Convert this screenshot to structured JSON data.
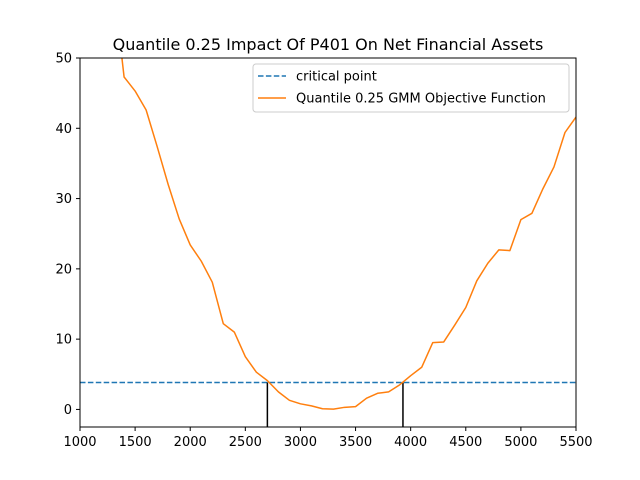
{
  "chart_data": {
    "type": "line",
    "title": "Quantile 0.25 Impact Of P401 On Net Financial Assets",
    "xlabel": "",
    "ylabel": "",
    "xlim": [
      1000,
      5500
    ],
    "ylim": [
      -2.5,
      50
    ],
    "grid": false,
    "legend_position": "top-right",
    "x_ticks": [
      1000,
      1500,
      2000,
      2500,
      3000,
      3500,
      4000,
      4500,
      5000,
      5500
    ],
    "y_ticks": [
      0,
      10,
      20,
      30,
      40,
      50
    ],
    "critical_level": {
      "name": "critical point",
      "value": 3.84,
      "color": "#1f77b4",
      "style": "dashed"
    },
    "series": [
      {
        "name": "Quantile 0.25 GMM Objective Function",
        "color": "#ff7f0e",
        "x": [
          1300,
          1400,
          1500,
          1600,
          1700,
          1800,
          1900,
          2000,
          2100,
          2200,
          2300,
          2400,
          2500,
          2600,
          2700,
          2800,
          2900,
          3000,
          3100,
          3200,
          3300,
          3400,
          3500,
          3600,
          3700,
          3800,
          3900,
          4000,
          4100,
          4200,
          4300,
          4400,
          4500,
          4600,
          4700,
          4800,
          4900,
          5000,
          5100,
          5200,
          5300,
          5400,
          5500
        ],
        "y": [
          61,
          47.3,
          45.3,
          42.6,
          37.4,
          32,
          27.1,
          23.4,
          21.1,
          18.1,
          12.2,
          11,
          7.5,
          5.3,
          4.1,
          2.5,
          1.3,
          0.8,
          0.5,
          0.1,
          0.05,
          0.3,
          0.4,
          1.6,
          2.3,
          2.5,
          3.5,
          4.8,
          6,
          9.5,
          9.6,
          12,
          14.5,
          18.3,
          20.8,
          22.7,
          22.6,
          27,
          27.9,
          31.4,
          34.5,
          39.4,
          41.6
        ]
      }
    ],
    "vertical_lines": [
      {
        "x": 2700,
        "color": "#000000"
      },
      {
        "x": 3930,
        "color": "#000000"
      }
    ]
  }
}
